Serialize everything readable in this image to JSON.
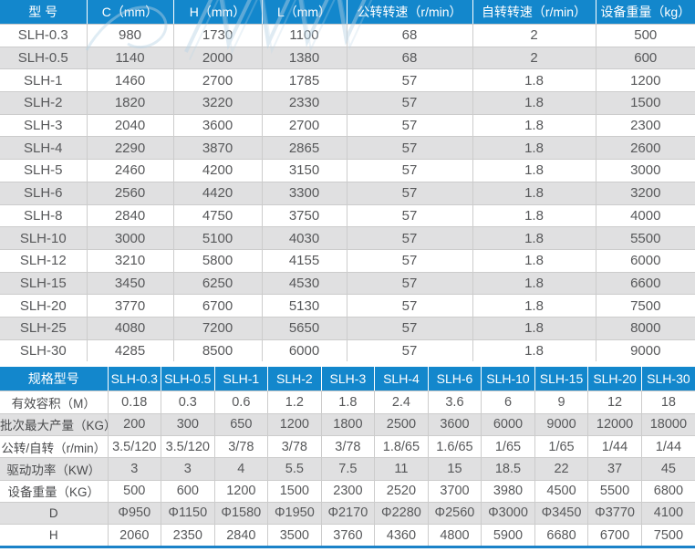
{
  "colors": {
    "header_blue": "#1387cc",
    "stripe_gray": "#e0e0e1",
    "text_gray": "#57585a",
    "line_blue": "#1b82c8"
  },
  "dimensions_table": {
    "headers": [
      "型 号",
      "C（mm）",
      "H（mm）",
      "L（mm）",
      "公转转速（r/min）",
      "自转转速（r/min）",
      "设备重量（kg）"
    ],
    "rows": [
      [
        "SLH-0.3",
        "980",
        "1730",
        "1100",
        "68",
        "2",
        "500"
      ],
      [
        "SLH-0.5",
        "1140",
        "2000",
        "1380",
        "68",
        "2",
        "600"
      ],
      [
        "SLH-1",
        "1460",
        "2700",
        "1785",
        "57",
        "1.8",
        "1200"
      ],
      [
        "SLH-2",
        "1820",
        "3220",
        "2330",
        "57",
        "1.8",
        "1500"
      ],
      [
        "SLH-3",
        "2040",
        "3600",
        "2700",
        "57",
        "1.8",
        "2300"
      ],
      [
        "SLH-4",
        "2290",
        "3870",
        "2865",
        "57",
        "1.8",
        "2600"
      ],
      [
        "SLH-5",
        "2460",
        "4200",
        "3150",
        "57",
        "1.8",
        "3000"
      ],
      [
        "SLH-6",
        "2560",
        "4420",
        "3300",
        "57",
        "1.8",
        "3200"
      ],
      [
        "SLH-8",
        "2840",
        "4750",
        "3750",
        "57",
        "1.8",
        "4000"
      ],
      [
        "SLH-10",
        "3000",
        "5100",
        "4030",
        "57",
        "1.8",
        "5500"
      ],
      [
        "SLH-12",
        "3210",
        "5800",
        "4155",
        "57",
        "1.8",
        "6000"
      ],
      [
        "SLH-15",
        "3450",
        "6250",
        "4530",
        "57",
        "1.8",
        "6600"
      ],
      [
        "SLH-20",
        "3770",
        "6700",
        "5130",
        "57",
        "1.8",
        "7500"
      ],
      [
        "SLH-25",
        "4080",
        "7200",
        "5650",
        "57",
        "1.8",
        "8000"
      ],
      [
        "SLH-30",
        "4285",
        "8500",
        "6000",
        "57",
        "1.8",
        "9000"
      ]
    ]
  },
  "specs_table": {
    "headers": [
      "规格型号",
      "SLH-0.3",
      "SLH-0.5",
      "SLH-1",
      "SLH-2",
      "SLH-3",
      "SLH-4",
      "SLH-6",
      "SLH-10",
      "SLH-15",
      "SLH-20",
      "SLH-30"
    ],
    "rows": [
      [
        "有效容积（M）",
        "0.18",
        "0.3",
        "0.6",
        "1.2",
        "1.8",
        "2.4",
        "3.6",
        "6",
        "9",
        "12",
        "18"
      ],
      [
        "批次最大产量（KG）",
        "200",
        "300",
        "650",
        "1200",
        "1800",
        "2500",
        "3600",
        "6000",
        "9000",
        "12000",
        "18000"
      ],
      [
        "公转/自转（r/min）",
        "3.5/120",
        "3.5/120",
        "3/78",
        "3/78",
        "3/78",
        "1.8/65",
        "1.6/65",
        "1/65",
        "1/65",
        "1/44",
        "1/44"
      ],
      [
        "驱动功率（KW）",
        "3",
        "3",
        "4",
        "5.5",
        "7.5",
        "11",
        "15",
        "18.5",
        "22",
        "37",
        "45"
      ],
      [
        "设备重量（KG）",
        "500",
        "600",
        "1200",
        "1500",
        "2300",
        "2520",
        "3700",
        "3980",
        "4500",
        "5500",
        "6800"
      ],
      [
        "D",
        "Φ950",
        "Φ1150",
        "Φ1580",
        "Φ1950",
        "Φ2170",
        "Φ2280",
        "Φ2560",
        "Φ3000",
        "Φ3450",
        "Φ3770",
        "4100"
      ],
      [
        "H",
        "2060",
        "2350",
        "2840",
        "3500",
        "3760",
        "4360",
        "4800",
        "5900",
        "6680",
        "6700",
        "7500"
      ]
    ]
  }
}
